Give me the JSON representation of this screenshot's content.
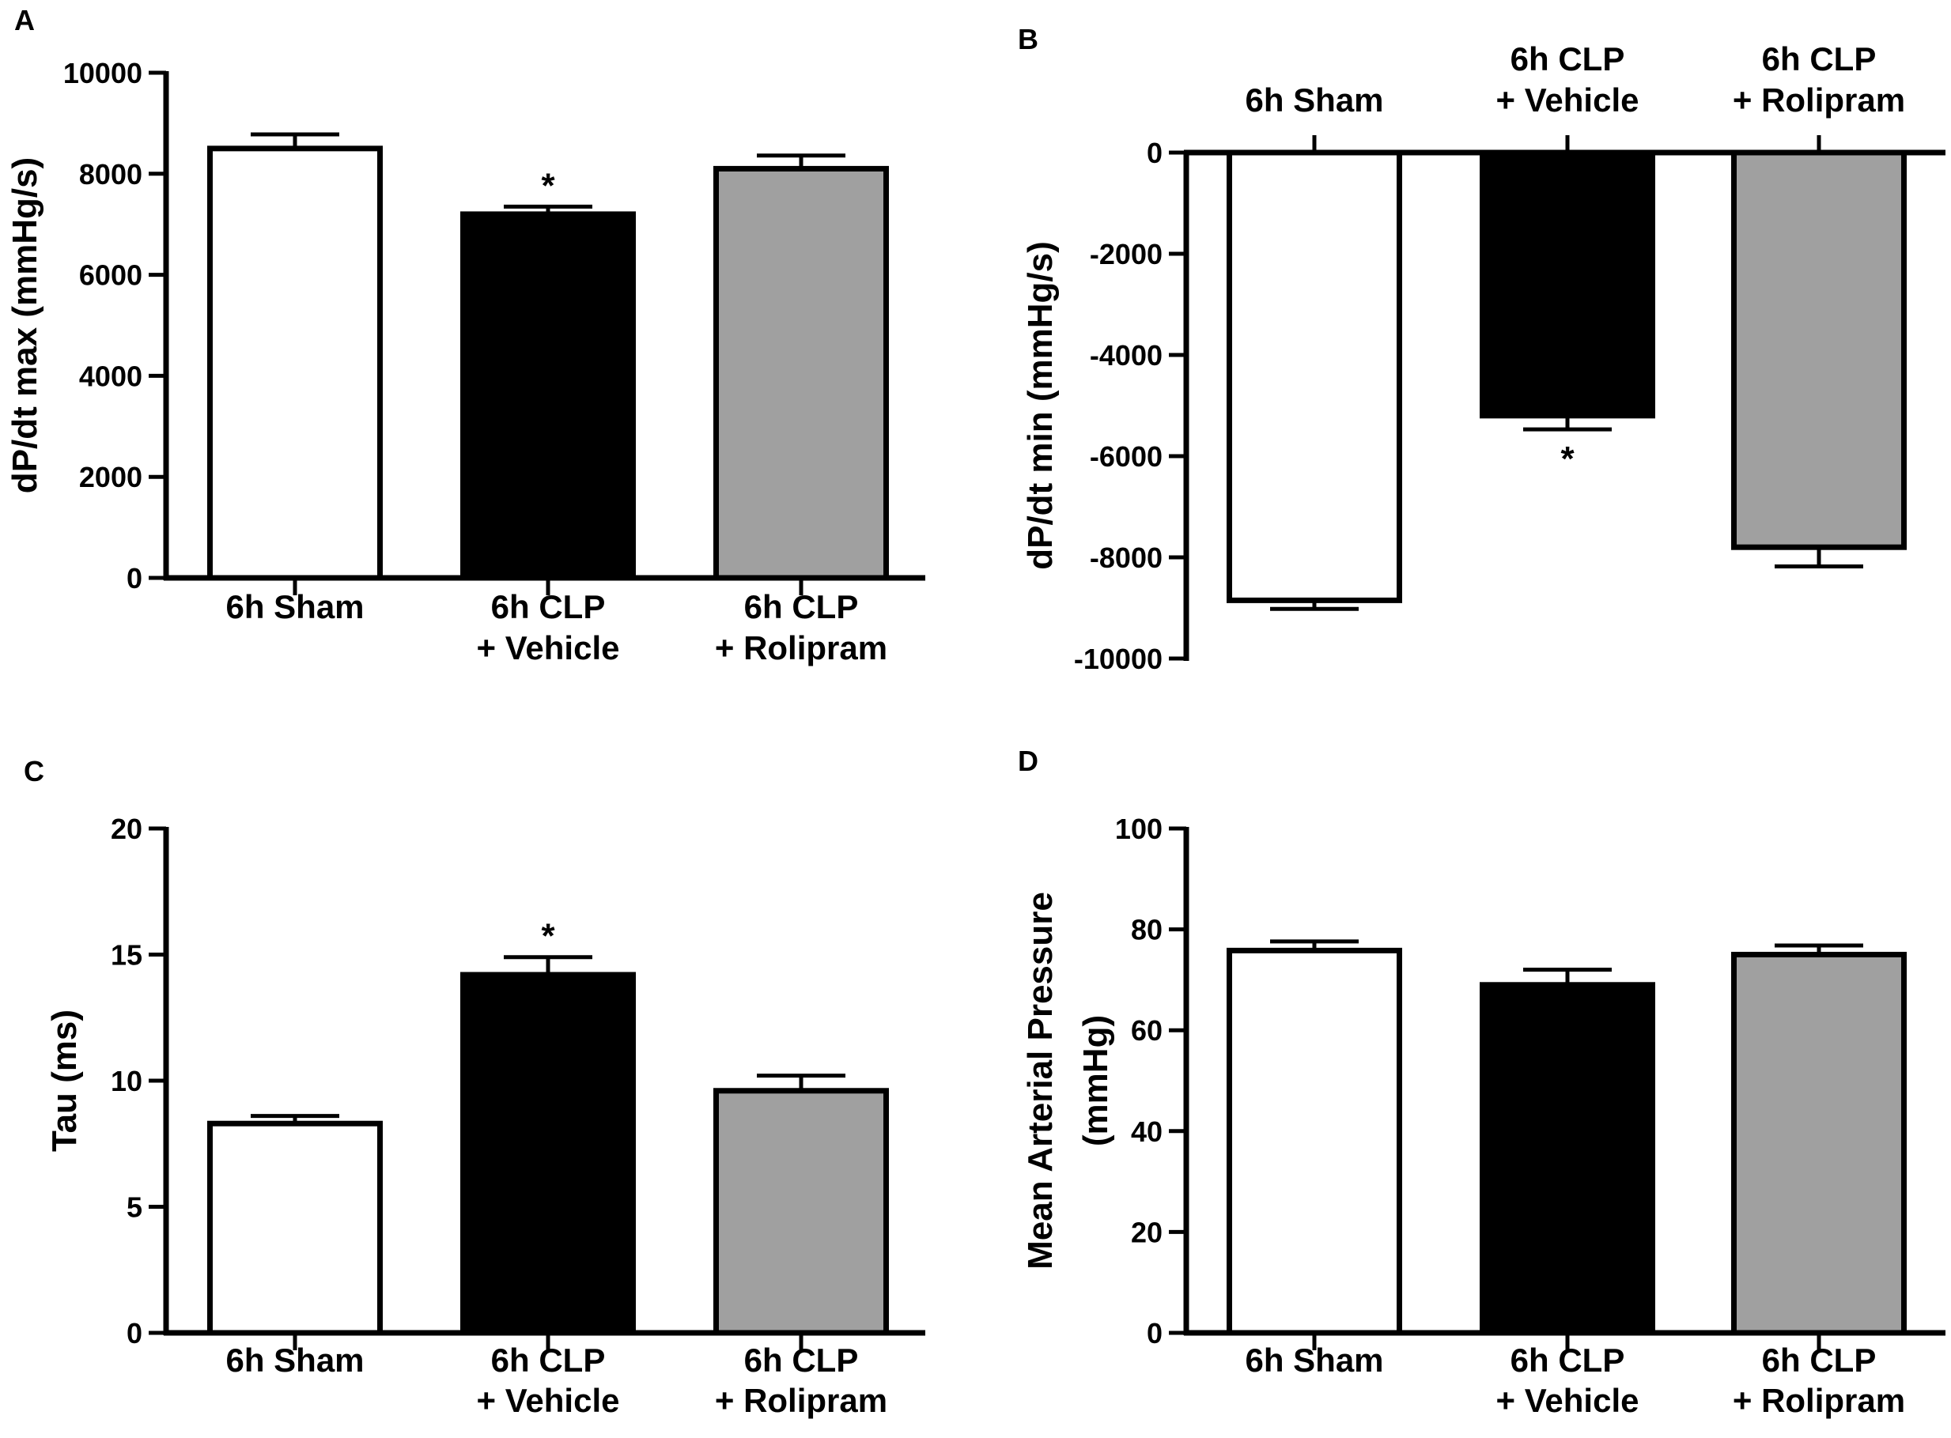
{
  "figure": {
    "categories": [
      [
        "6h Sham"
      ],
      [
        "6h CLP",
        "+ Vehicle"
      ],
      [
        "6h CLP",
        "+ Rolipram"
      ]
    ],
    "bar_colors": [
      "#ffffff",
      "#000000",
      "#a0a0a0"
    ]
  },
  "chart_data": [
    {
      "panel": "A",
      "type": "bar",
      "categories": [
        "6h Sham",
        "6h CLP + Vehicle",
        "6h CLP + Rolipram"
      ],
      "values": [
        8500,
        7200,
        8100
      ],
      "errors": [
        280,
        150,
        260
      ],
      "significance": [
        "",
        "*",
        ""
      ],
      "ylabel": "dP/dt max (mmHg/s)",
      "ylim": [
        0,
        10000
      ],
      "yticks": [
        0,
        2000,
        4000,
        6000,
        8000,
        10000
      ],
      "category_labels_position": "bottom"
    },
    {
      "panel": "B",
      "type": "bar",
      "categories": [
        "6h Sham",
        "6h CLP + Vehicle",
        "6h CLP + Rolipram"
      ],
      "values": [
        -8850,
        -5200,
        -7800
      ],
      "errors": [
        170,
        270,
        380
      ],
      "significance": [
        "",
        "*",
        ""
      ],
      "ylabel": "dP/dt min (mmHg/s)",
      "ylim": [
        -10000,
        0
      ],
      "yticks": [
        0,
        -2000,
        -4000,
        -6000,
        -8000,
        -10000
      ],
      "category_labels_position": "top"
    },
    {
      "panel": "C",
      "type": "bar",
      "categories": [
        "6h Sham",
        "6h CLP + Vehicle",
        "6h CLP + Rolipram"
      ],
      "values": [
        8.3,
        14.2,
        9.6
      ],
      "errors": [
        0.3,
        0.7,
        0.6
      ],
      "significance": [
        "",
        "*",
        ""
      ],
      "ylabel": "Tau (ms)",
      "ylim": [
        0,
        20
      ],
      "yticks": [
        0,
        5,
        10,
        15,
        20
      ],
      "category_labels_position": "bottom"
    },
    {
      "panel": "D",
      "type": "bar",
      "categories": [
        "6h Sham",
        "6h CLP + Vehicle",
        "6h CLP + Rolipram"
      ],
      "values": [
        75.8,
        69,
        75
      ],
      "errors": [
        1.8,
        3,
        1.8
      ],
      "significance": [
        "",
        "",
        ""
      ],
      "ylabel_lines": [
        "Mean Arterial Pressure",
        "(mmHg)"
      ],
      "ylim": [
        0,
        100
      ],
      "yticks": [
        0,
        20,
        40,
        60,
        80,
        100
      ],
      "category_labels_position": "bottom"
    }
  ]
}
